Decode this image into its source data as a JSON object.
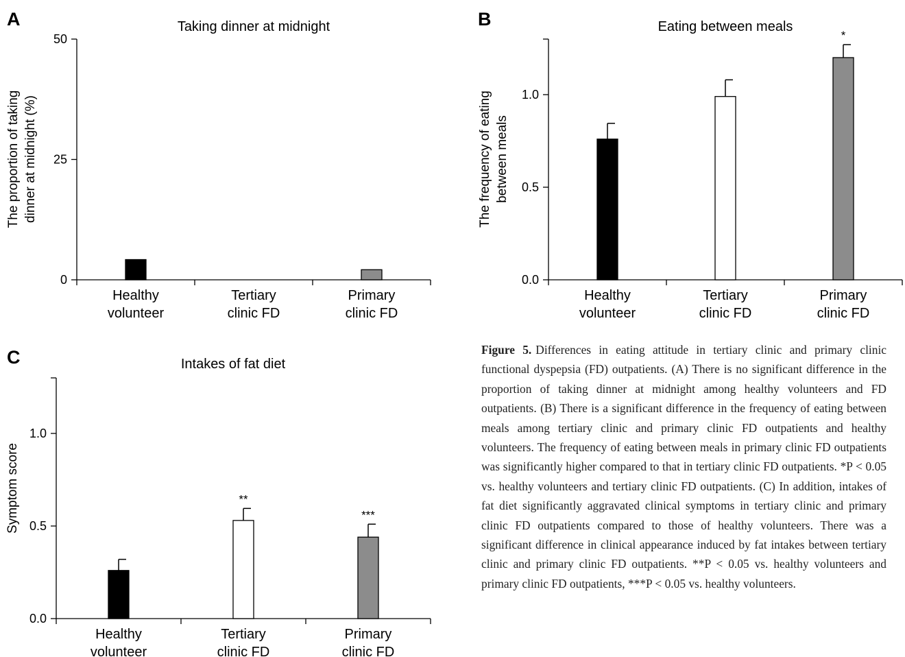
{
  "categories": [
    [
      "Healthy",
      "volunteer"
    ],
    [
      "Tertiary",
      "clinic FD"
    ],
    [
      "Primary",
      "clinic FD"
    ]
  ],
  "colors": {
    "healthy": "#000000",
    "tertiary": "#ffffff",
    "primary": "#8c8c8c"
  },
  "chart_data": [
    {
      "panel": "A",
      "type": "bar",
      "title": "Taking dinner at midnight",
      "ylabel": [
        "The proportion of taking",
        "dinner at midnight (%)"
      ],
      "xlabel": "",
      "ylim": [
        0,
        50
      ],
      "yticks": [
        0,
        25,
        50
      ],
      "ytick_labels": [
        "0",
        "25",
        "50"
      ],
      "categories": [
        "Healthy volunteer",
        "Tertiary clinic FD",
        "Primary clinic FD"
      ],
      "values": [
        4.2,
        0,
        2.1
      ],
      "errors": [
        0,
        0,
        0
      ],
      "significance": [
        "",
        "",
        ""
      ]
    },
    {
      "panel": "B",
      "type": "bar",
      "title": "Eating between meals",
      "ylabel": [
        "The frequency of eating",
        "between meals"
      ],
      "xlabel": "",
      "ylim": [
        0,
        1.3
      ],
      "yticks": [
        0.0,
        0.5,
        1.0
      ],
      "ytick_labels": [
        "0.0",
        "0.5",
        "1.0"
      ],
      "categories": [
        "Healthy volunteer",
        "Tertiary clinic FD",
        "Primary clinic FD"
      ],
      "values": [
        0.76,
        0.99,
        1.2
      ],
      "errors": [
        0.085,
        0.09,
        0.07
      ],
      "significance": [
        "",
        "",
        "*"
      ]
    },
    {
      "panel": "C",
      "type": "bar",
      "title": "Intakes of fat diet",
      "ylabel": [
        "Symptom score"
      ],
      "xlabel": "",
      "ylim": [
        0,
        1.3
      ],
      "yticks": [
        0.0,
        0.5,
        1.0
      ],
      "ytick_labels": [
        "0.0",
        "0.5",
        "1.0"
      ],
      "categories": [
        "Healthy volunteer",
        "Tertiary clinic FD",
        "Primary clinic FD"
      ],
      "values": [
        0.26,
        0.53,
        0.44
      ],
      "errors": [
        0.06,
        0.065,
        0.07
      ],
      "significance": [
        "",
        "**",
        "***"
      ]
    }
  ],
  "caption": {
    "label": "Figure 5.",
    "text": "Differences in eating attitude in tertiary clinic and primary clinic functional dyspepsia (FD) outpatients. (A) There is no significant difference in the proportion of taking dinner at midnight among healthy volunteers and FD outpatients. (B) There is a significant difference in the frequency of eating between meals among tertiary clinic and primary clinic FD outpatients and healthy volunteers. The frequency of eating between meals in primary clinic FD outpatients was significantly higher compared to that in tertiary clinic FD outpatients. *P < 0.05 vs. healthy volunteers and tertiary clinic FD outpatients. (C) In addition, intakes of fat diet significantly aggravated clinical symptoms in tertiary clinic and primary clinic FD outpatients compared to those of healthy volunteers. There was a significant difference in clinical appearance induced by fat intakes between tertiary clinic and primary clinic FD outpatients. **P < 0.05 vs. healthy volunteers and primary clinic FD outpatients, ***P < 0.05 vs. healthy volunteers."
  }
}
